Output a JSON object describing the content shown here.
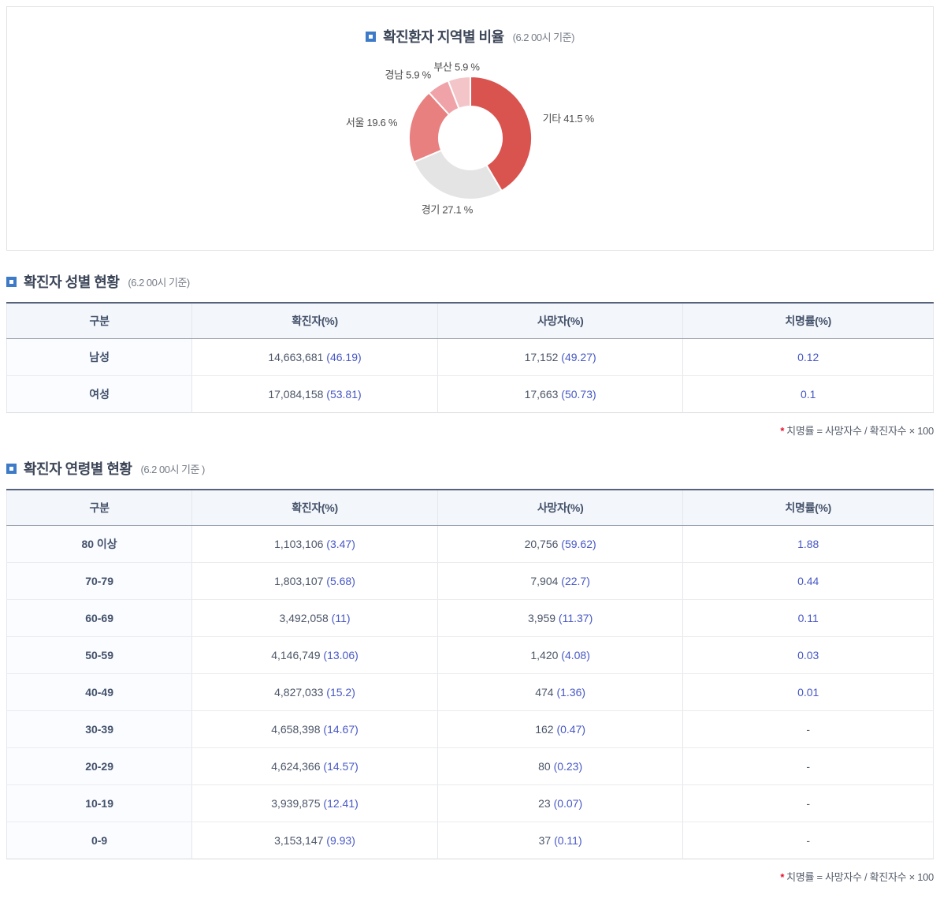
{
  "chart_section": {
    "title": "확진환자 지역별 비율",
    "note": "(6.2 00시 기준)"
  },
  "chart_data": {
    "type": "pie",
    "donut": true,
    "title": "확진환자 지역별 비율 (6.2 00시 기준)",
    "labels": [
      "기타",
      "경기",
      "서울",
      "경남",
      "부산"
    ],
    "values": [
      41.5,
      27.1,
      19.6,
      5.9,
      5.9
    ],
    "unit": "%",
    "colors": [
      "#d9534f",
      "#e5e4e4",
      "#e88080",
      "#efa3a9",
      "#f3c5c9"
    ],
    "start_angle": "top",
    "direction": "clockwise",
    "legend": "none",
    "label_position": "outside"
  },
  "gender_section": {
    "title": "확진자 성별 현황",
    "note": "(6.2 00시 기준)",
    "columns": [
      "구분",
      "확진자(%)",
      "사망자(%)",
      "치명률(%)"
    ],
    "rows": [
      {
        "label": "남성",
        "confirmed": "14,663,681",
        "confirmed_pct": "(46.19)",
        "deaths": "17,152",
        "deaths_pct": "(49.27)",
        "fatality": "0.12"
      },
      {
        "label": "여성",
        "confirmed": "17,084,158",
        "confirmed_pct": "(53.81)",
        "deaths": "17,663",
        "deaths_pct": "(50.73)",
        "fatality": "0.1"
      }
    ],
    "footnote_mark": "*",
    "footnote": "치명률 = 사망자수 / 확진자수 × 100"
  },
  "age_section": {
    "title": "확진자 연령별 현황",
    "note": "(6.2 00시 기준 )",
    "columns": [
      "구분",
      "확진자(%)",
      "사망자(%)",
      "치명률(%)"
    ],
    "rows": [
      {
        "label": "80 이상",
        "confirmed": "1,103,106",
        "confirmed_pct": "(3.47)",
        "deaths": "20,756",
        "deaths_pct": "(59.62)",
        "fatality": "1.88"
      },
      {
        "label": "70-79",
        "confirmed": "1,803,107",
        "confirmed_pct": "(5.68)",
        "deaths": "7,904",
        "deaths_pct": "(22.7)",
        "fatality": "0.44"
      },
      {
        "label": "60-69",
        "confirmed": "3,492,058",
        "confirmed_pct": "(11)",
        "deaths": "3,959",
        "deaths_pct": "(11.37)",
        "fatality": "0.11"
      },
      {
        "label": "50-59",
        "confirmed": "4,146,749",
        "confirmed_pct": "(13.06)",
        "deaths": "1,420",
        "deaths_pct": "(4.08)",
        "fatality": "0.03"
      },
      {
        "label": "40-49",
        "confirmed": "4,827,033",
        "confirmed_pct": "(15.2)",
        "deaths": "474",
        "deaths_pct": "(1.36)",
        "fatality": "0.01"
      },
      {
        "label": "30-39",
        "confirmed": "4,658,398",
        "confirmed_pct": "(14.67)",
        "deaths": "162",
        "deaths_pct": "(0.47)",
        "fatality": "-"
      },
      {
        "label": "20-29",
        "confirmed": "4,624,366",
        "confirmed_pct": "(14.57)",
        "deaths": "80",
        "deaths_pct": "(0.23)",
        "fatality": "-"
      },
      {
        "label": "10-19",
        "confirmed": "3,939,875",
        "confirmed_pct": "(12.41)",
        "deaths": "23",
        "deaths_pct": "(0.07)",
        "fatality": "-"
      },
      {
        "label": "0-9",
        "confirmed": "3,153,147",
        "confirmed_pct": "(9.93)",
        "deaths": "37",
        "deaths_pct": "(0.11)",
        "fatality": "-"
      }
    ],
    "footnote_mark": "*",
    "footnote": "치명률 = 사망자수 / 확진자수 × 100"
  }
}
